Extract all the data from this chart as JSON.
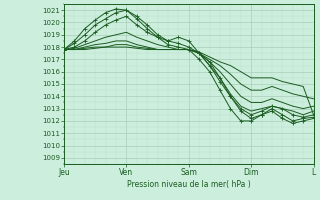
{
  "bg_color": "#cceedd",
  "grid_major_color": "#aaccbb",
  "grid_minor_color": "#bbddcc",
  "line_color": "#1a5c20",
  "ylabel": "Pression niveau de la mer( hPa )",
  "ylim": [
    1008.5,
    1021.5
  ],
  "yticks": [
    1009,
    1010,
    1011,
    1012,
    1013,
    1014,
    1015,
    1016,
    1017,
    1018,
    1019,
    1020,
    1021
  ],
  "xlim": [
    0,
    96
  ],
  "xtick_positions": [
    0,
    24,
    48,
    72,
    96
  ],
  "xtick_labels": [
    "Jeu",
    "Ven",
    "Sam",
    "Dim",
    "L"
  ],
  "series": [
    {
      "x": [
        0,
        4,
        8,
        12,
        16,
        20,
        24,
        28,
        32,
        36,
        40,
        44,
        48,
        52,
        56,
        60,
        64,
        68,
        72,
        76,
        80,
        84,
        88,
        92,
        96
      ],
      "y": [
        1017.8,
        1018.5,
        1019.5,
        1020.2,
        1020.8,
        1021.1,
        1021.0,
        1020.5,
        1019.8,
        1019.0,
        1018.5,
        1018.8,
        1018.5,
        1017.5,
        1016.5,
        1015.2,
        1014.0,
        1012.8,
        1012.2,
        1012.5,
        1012.8,
        1012.2,
        1011.8,
        1012.0,
        1012.2
      ],
      "marker": true
    },
    {
      "x": [
        0,
        4,
        8,
        12,
        16,
        20,
        24,
        28,
        32,
        36,
        40,
        44,
        48,
        52,
        56,
        60,
        64,
        68,
        72,
        76,
        80,
        84,
        88,
        92,
        96
      ],
      "y": [
        1017.8,
        1018.3,
        1019.0,
        1019.8,
        1020.3,
        1020.8,
        1021.0,
        1020.3,
        1019.5,
        1018.8,
        1018.2,
        1018.0,
        1017.8,
        1017.0,
        1016.0,
        1014.5,
        1013.0,
        1012.0,
        1012.0,
        1012.5,
        1013.0,
        1012.5,
        1012.0,
        1012.2,
        1012.3
      ],
      "marker": true
    },
    {
      "x": [
        0,
        4,
        8,
        12,
        16,
        20,
        24,
        28,
        32,
        36,
        40,
        44,
        48,
        52,
        56,
        60,
        64,
        68,
        72,
        76,
        80,
        84,
        88,
        92,
        96
      ],
      "y": [
        1017.8,
        1018.0,
        1018.5,
        1019.2,
        1019.8,
        1020.2,
        1020.5,
        1019.8,
        1019.2,
        1018.8,
        1018.5,
        1018.3,
        1018.0,
        1017.5,
        1016.8,
        1015.5,
        1014.0,
        1013.0,
        1012.5,
        1012.8,
        1013.2,
        1013.0,
        1012.5,
        1012.3,
        1012.5
      ],
      "marker": true
    },
    {
      "x": [
        0,
        4,
        8,
        12,
        16,
        20,
        24,
        28,
        32,
        36,
        40,
        44,
        48,
        52,
        56,
        60,
        64,
        68,
        72,
        76,
        80,
        84,
        88,
        92,
        96
      ],
      "y": [
        1017.8,
        1017.9,
        1018.2,
        1018.5,
        1018.8,
        1019.0,
        1019.2,
        1018.8,
        1018.5,
        1018.2,
        1018.0,
        1017.8,
        1017.8,
        1017.5,
        1016.5,
        1015.5,
        1014.2,
        1013.2,
        1012.8,
        1013.0,
        1013.2,
        1013.0,
        1012.8,
        1012.5,
        1012.8
      ],
      "marker": false
    },
    {
      "x": [
        0,
        4,
        8,
        12,
        16,
        20,
        24,
        28,
        32,
        36,
        40,
        44,
        48,
        52,
        56,
        60,
        64,
        68,
        72,
        76,
        80,
        84,
        88,
        92,
        96
      ],
      "y": [
        1017.8,
        1017.8,
        1018.0,
        1018.2,
        1018.3,
        1018.5,
        1018.5,
        1018.2,
        1018.0,
        1017.8,
        1017.8,
        1017.8,
        1017.8,
        1017.5,
        1016.8,
        1016.0,
        1015.0,
        1014.0,
        1013.5,
        1013.5,
        1013.8,
        1013.5,
        1013.2,
        1013.0,
        1013.2
      ],
      "marker": false
    },
    {
      "x": [
        0,
        4,
        8,
        12,
        16,
        20,
        24,
        28,
        32,
        36,
        40,
        44,
        48,
        52,
        56,
        60,
        64,
        68,
        72,
        76,
        80,
        84,
        88,
        92,
        96
      ],
      "y": [
        1017.8,
        1017.8,
        1017.9,
        1018.0,
        1018.0,
        1018.2,
        1018.2,
        1018.0,
        1017.9,
        1017.8,
        1017.8,
        1017.8,
        1017.8,
        1017.5,
        1017.0,
        1016.5,
        1015.8,
        1015.0,
        1014.5,
        1014.5,
        1014.8,
        1014.5,
        1014.2,
        1014.0,
        1013.8
      ],
      "marker": false
    },
    {
      "x": [
        0,
        4,
        8,
        12,
        16,
        20,
        24,
        28,
        32,
        36,
        40,
        44,
        48,
        52,
        56,
        60,
        64,
        68,
        72,
        76,
        80,
        84,
        88,
        92,
        96
      ],
      "y": [
        1017.8,
        1017.8,
        1017.8,
        1017.9,
        1018.0,
        1018.0,
        1018.0,
        1017.9,
        1017.8,
        1017.8,
        1017.8,
        1017.8,
        1017.8,
        1017.6,
        1017.2,
        1016.8,
        1016.5,
        1016.0,
        1015.5,
        1015.5,
        1015.5,
        1015.2,
        1015.0,
        1014.8,
        1012.5
      ],
      "marker": false
    }
  ]
}
